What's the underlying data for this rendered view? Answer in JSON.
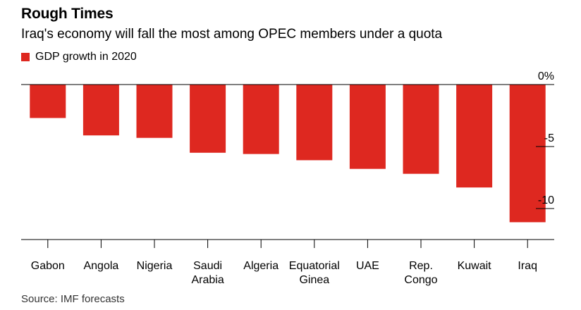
{
  "header": {
    "title": "Rough Times",
    "subtitle": "Iraq's economy will fall the most among OPEC members under a quota"
  },
  "legend": {
    "label": "GDP growth in 2020",
    "color": "#de2820"
  },
  "footer": {
    "source": "Source: IMF forecasts"
  },
  "colors": {
    "bar": "#de2820",
    "axis": "#000000",
    "tick_text": "#000000"
  },
  "chart_data": {
    "type": "bar",
    "title": "Rough Times",
    "subtitle": "Iraq's economy will fall the most among OPEC members under a quota",
    "categories": [
      [
        "Gabon"
      ],
      [
        "Angola"
      ],
      [
        "Nigeria"
      ],
      [
        "Saudi",
        "Arabia"
      ],
      [
        "Algeria"
      ],
      [
        "Equatorial",
        "Ginea"
      ],
      [
        "UAE"
      ],
      [
        "Rep.",
        "Congo"
      ],
      [
        "Kuwait"
      ],
      [
        "Iraq"
      ]
    ],
    "series": [
      {
        "name": "GDP growth in 2020",
        "values": [
          -2.7,
          -4.1,
          -4.3,
          -5.5,
          -5.6,
          -6.1,
          -6.8,
          -7.2,
          -8.3,
          -11.1
        ]
      }
    ],
    "xlabel": "",
    "ylabel": "",
    "ylim": [
      -12.5,
      0
    ],
    "yticks": [
      0,
      -5,
      -10
    ],
    "ytick_labels": [
      "0%",
      "-5",
      "-10"
    ],
    "y_axis_side": "right",
    "grid": false,
    "legend_position": "top-left"
  }
}
